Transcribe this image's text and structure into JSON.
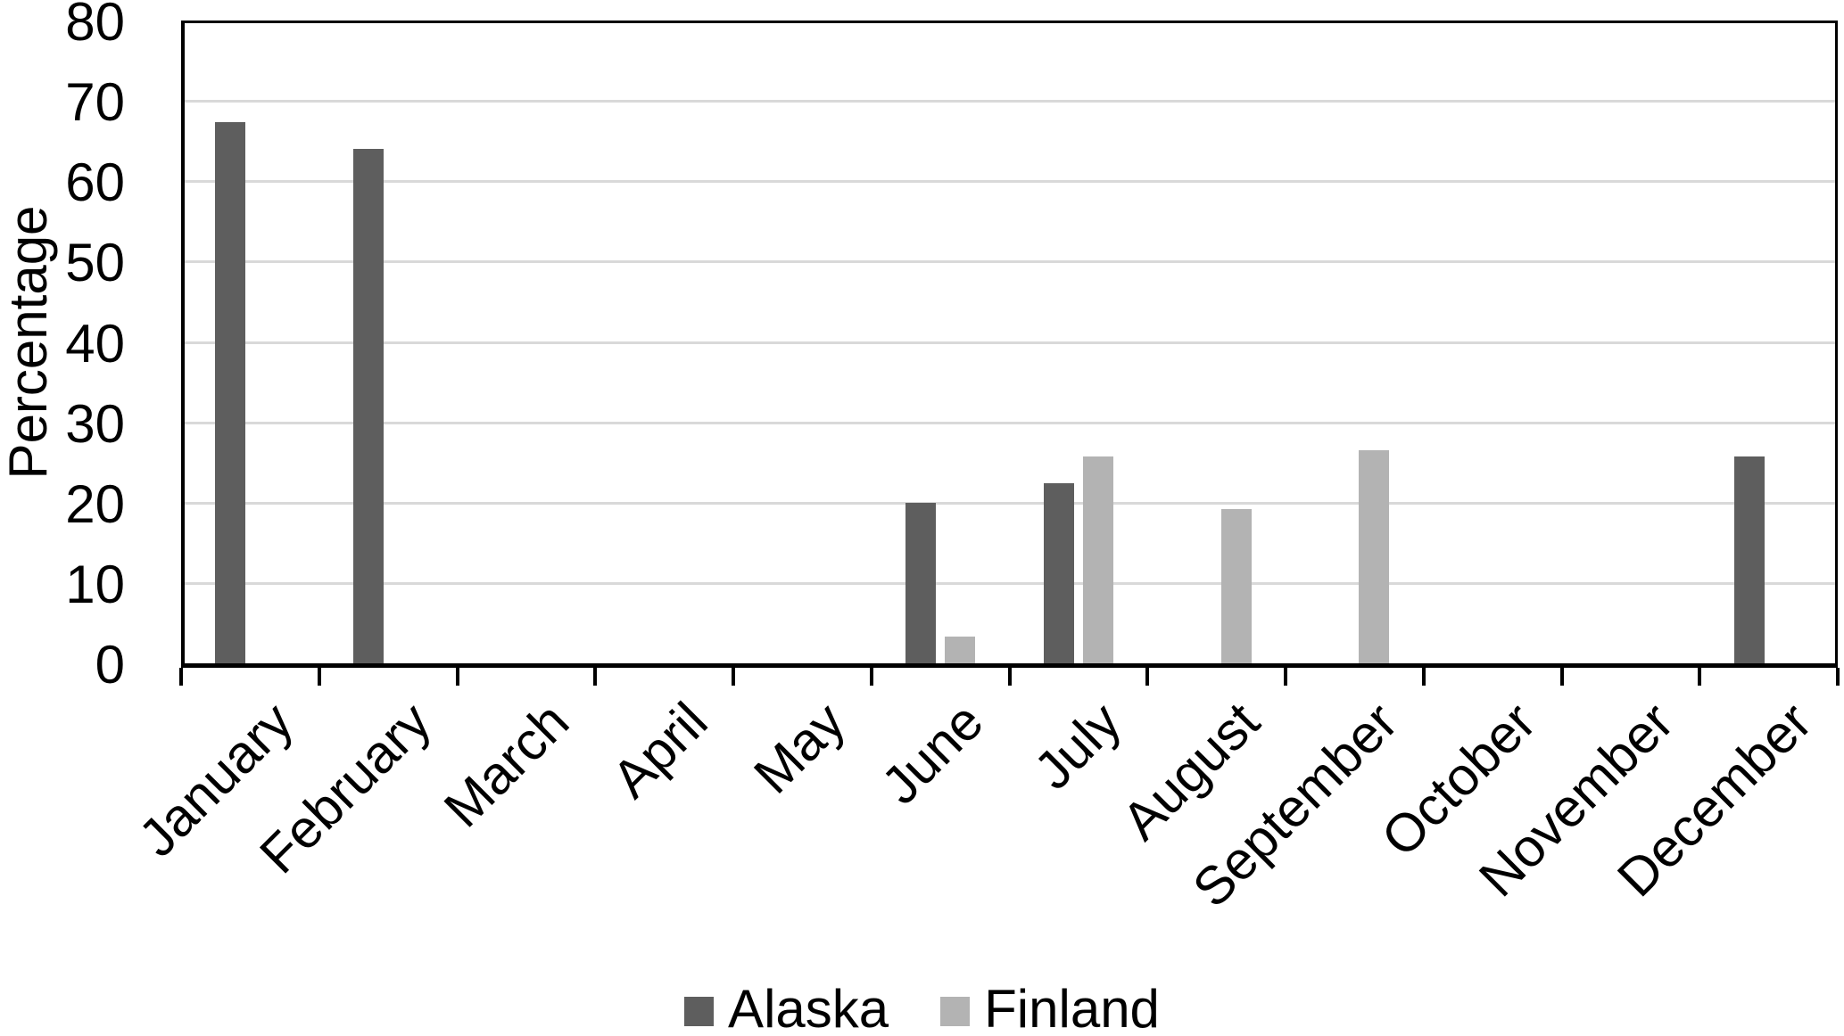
{
  "chart_data": {
    "type": "bar",
    "title": "",
    "xlabel": "",
    "ylabel": "Percentage",
    "categories": [
      "January",
      "February",
      "March",
      "April",
      "May",
      "June",
      "July",
      "August",
      "September",
      "October",
      "November",
      "December"
    ],
    "series": [
      {
        "name": "Alaska",
        "color": "#5e5e5e",
        "values": [
          67.4,
          64,
          0,
          0,
          0,
          20,
          22.4,
          0,
          0,
          0,
          0,
          25.7
        ]
      },
      {
        "name": "Finland",
        "color": "#b3b3b3",
        "values": [
          0,
          0,
          0,
          0,
          0,
          3.3,
          25.7,
          19.2,
          26.5,
          0,
          0,
          0
        ]
      }
    ],
    "ylim": [
      0,
      80
    ],
    "yticks": [
      0,
      10,
      20,
      30,
      40,
      50,
      60,
      70,
      80
    ],
    "grid": "horizontal-only",
    "gridline_color": "#d9d9d9",
    "axis_color": "#000000",
    "background_color": "#ffffff",
    "legend_position": "bottom-center",
    "x_label_rotation_deg": 45
  }
}
